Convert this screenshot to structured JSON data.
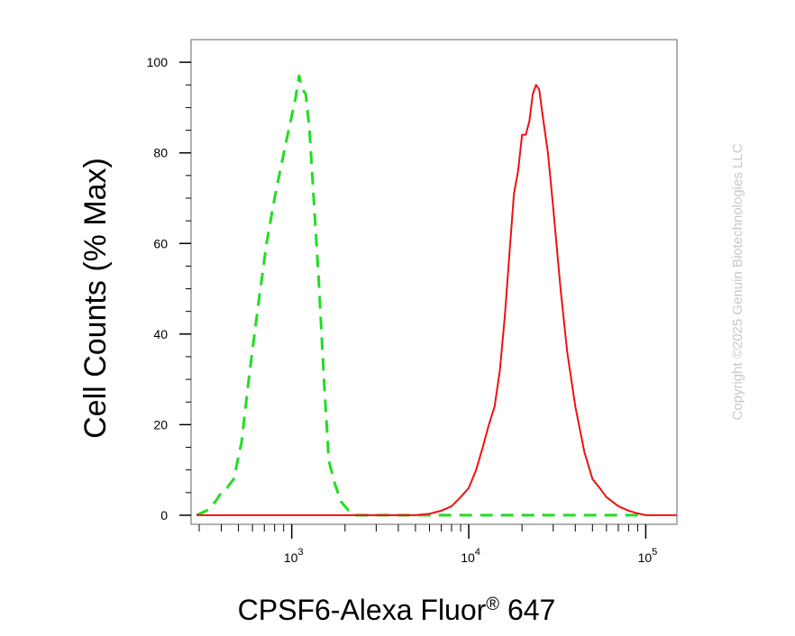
{
  "chart_data": {
    "type": "line",
    "title": "",
    "xlabel": "CPSF6-Alexa Fluor",
    "xlabel_mark": "®",
    "xlabel_suffix": " 647",
    "ylabel": "Cell Counts (% Max)",
    "x_scale": "log",
    "xlim": [
      270,
      150000
    ],
    "ylim": [
      -2,
      105
    ],
    "x_ticks": [
      {
        "value": 1000,
        "base": "10",
        "exp": "3"
      },
      {
        "value": 10000,
        "base": "10",
        "exp": "4"
      },
      {
        "value": 100000,
        "base": "10",
        "exp": "5"
      }
    ],
    "y_ticks": [
      0,
      20,
      40,
      60,
      80,
      100
    ],
    "grid": false,
    "legend": "none",
    "series": [
      {
        "color": "#22dd22",
        "style": "dashed",
        "x": [
          290,
          330,
          370,
          400,
          430,
          470,
          520,
          580,
          650,
          720,
          800,
          880,
          960,
          1050,
          1100,
          1150,
          1200,
          1260,
          1330,
          1420,
          1520,
          1620,
          1750,
          1900,
          2100,
          2300,
          2500,
          3000,
          5000,
          10000,
          30000,
          100000
        ],
        "values": [
          0,
          1,
          3,
          5,
          6,
          8,
          16,
          32,
          47,
          60,
          70,
          78,
          85,
          92,
          97,
          94,
          93,
          85,
          70,
          52,
          30,
          12,
          7,
          3,
          1,
          0,
          0,
          0,
          0,
          0,
          0,
          0
        ]
      },
      {
        "color": "#ee1111",
        "style": "solid",
        "x": [
          290,
          1000,
          3000,
          5000,
          6000,
          7000,
          8000,
          9000,
          10000,
          11000,
          12000,
          13000,
          14000,
          15000,
          16000,
          17000,
          18000,
          19000,
          20000,
          21000,
          22000,
          23000,
          24000,
          25000,
          26000,
          28000,
          30000,
          33000,
          36000,
          40000,
          45000,
          50000,
          55000,
          60000,
          70000,
          80000,
          90000,
          100000,
          120000,
          150000
        ],
        "values": [
          0,
          0,
          0,
          0,
          0.3,
          1,
          2,
          4,
          6,
          10,
          15,
          20,
          24,
          32,
          44,
          58,
          71,
          76,
          84,
          84,
          87,
          93,
          95,
          94,
          89,
          80,
          68,
          50,
          36,
          24,
          14,
          8,
          6,
          4,
          2,
          1,
          0.4,
          0,
          0,
          0
        ]
      }
    ]
  },
  "watermark": "Copyright ©2025 Genuin Biotechnologies LLC"
}
